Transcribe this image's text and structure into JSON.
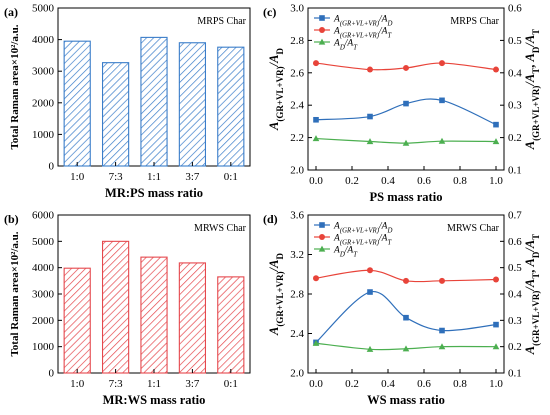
{
  "colors": {
    "blue": "#2f6fba",
    "red": "#e8443a",
    "green": "#4caf50",
    "bar_blue": "#3a7dc9",
    "bar_red": "#e5484d"
  },
  "chart_data": [
    {
      "type": "bar",
      "panel": "(a)",
      "tag": "MRPS Char",
      "categories": [
        "1:0",
        "7:3",
        "1:1",
        "3:7",
        "0:1"
      ],
      "values": [
        3950,
        3270,
        4070,
        3900,
        3760
      ],
      "xlabel": "MR:PS mass ratio",
      "ylabel": "Total Raman area×10²/a.u.",
      "ylim": [
        0,
        5000
      ],
      "yticks": [
        "0",
        "1000",
        "2000",
        "3000",
        "4000",
        "5000"
      ],
      "grid": false
    },
    {
      "type": "bar",
      "panel": "(b)",
      "tag": "MRWS Char",
      "categories": [
        "1:0",
        "7:3",
        "1:1",
        "3:7",
        "0:1"
      ],
      "values": [
        3980,
        5000,
        4400,
        4180,
        3650
      ],
      "xlabel": "MR:WS mass ratio",
      "ylabel": "Total Raman area×10²/a.u.",
      "ylim": [
        0,
        6000
      ],
      "yticks": [
        "0",
        "1000",
        "2000",
        "3000",
        "4000",
        "5000",
        "6000"
      ],
      "grid": false
    },
    {
      "type": "line",
      "panel": "(c)",
      "tag": "MRPS Char",
      "x": [
        0,
        0.3,
        0.5,
        0.7,
        1.0
      ],
      "xticks": [
        "0.0",
        "0.2",
        "0.4",
        "0.6",
        "0.8",
        "1.0"
      ],
      "xlabel": "PS mass ratio",
      "ylabel": "A(GR+VL+VR)/AD",
      "ylabel_right": "A(GR+VL+VR)/AT, AD/AT",
      "ylim": [
        2.0,
        3.0
      ],
      "yticks": [
        "2.0",
        "2.2",
        "2.4",
        "2.6",
        "2.8",
        "3.0"
      ],
      "ylim_right": [
        0.1,
        0.6
      ],
      "yticks_right": [
        "0.1",
        "0.2",
        "0.3",
        "0.4",
        "0.5",
        "0.6"
      ],
      "legend_position": "top-left",
      "series": [
        {
          "name": "A(GR+VL+VR)/AD",
          "axis": "left",
          "marker": "square",
          "color": "#2f6fba",
          "values": [
            2.31,
            2.33,
            2.41,
            2.43,
            2.28
          ]
        },
        {
          "name": "A(GR+VL+VR)/AT",
          "axis": "right",
          "marker": "circle",
          "color": "#e8443a",
          "values": [
            0.43,
            0.41,
            0.415,
            0.43,
            0.41
          ]
        },
        {
          "name": "AD/AT",
          "axis": "right",
          "marker": "triangle",
          "color": "#4caf50",
          "values": [
            0.197,
            0.188,
            0.183,
            0.189,
            0.188
          ]
        }
      ]
    },
    {
      "type": "line",
      "panel": "(d)",
      "tag": "MRWS Char",
      "x": [
        0,
        0.3,
        0.5,
        0.7,
        1.0
      ],
      "xticks": [
        "0.0",
        "0.2",
        "0.4",
        "0.6",
        "0.8",
        "1.0"
      ],
      "xlabel": "WS mass ratio",
      "ylabel": "A(GR+VL+VR)/AD",
      "ylabel_right": "A(GR+VL+VR)/AT, AD/AT",
      "ylim": [
        2.0,
        3.6
      ],
      "yticks": [
        "2.0",
        "2.4",
        "2.8",
        "3.2",
        "3.6"
      ],
      "ylim_right": [
        0.1,
        0.7
      ],
      "yticks_right": [
        "0.1",
        "0.2",
        "0.3",
        "0.4",
        "0.5",
        "0.6",
        "0.7"
      ],
      "legend_position": "top-left",
      "series": [
        {
          "name": "A(GR+VL+VR)/AD",
          "axis": "left",
          "marker": "square",
          "color": "#2f6fba",
          "values": [
            2.31,
            2.82,
            2.56,
            2.43,
            2.49
          ]
        },
        {
          "name": "A(GR+VL+VR)/AT",
          "axis": "right",
          "marker": "circle",
          "color": "#e8443a",
          "values": [
            0.46,
            0.49,
            0.45,
            0.45,
            0.455
          ]
        },
        {
          "name": "AD/AT",
          "axis": "right",
          "marker": "triangle",
          "color": "#4caf50",
          "values": [
            0.213,
            0.19,
            0.192,
            0.2,
            0.2
          ]
        }
      ]
    }
  ]
}
